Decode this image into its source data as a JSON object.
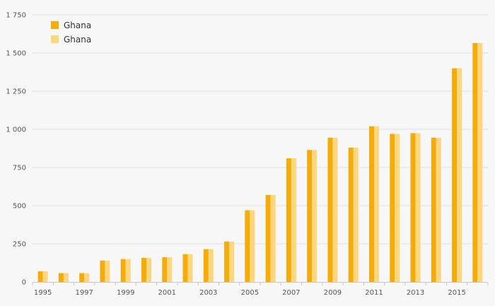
{
  "chart_data": {
    "type": "bar",
    "title": "",
    "xlabel": "",
    "ylabel": "",
    "categories": [
      "1995",
      "1996",
      "1997",
      "1998",
      "1999",
      "2000",
      "2001",
      "2002",
      "2003",
      "2004",
      "2005",
      "2006",
      "2007",
      "2008",
      "2009",
      "2010",
      "2011",
      "2012",
      "2013",
      "2014",
      "2015",
      "2016"
    ],
    "x_tick_labels": [
      "1995",
      "1997",
      "1999",
      "2001",
      "2003",
      "2005",
      "2007",
      "2009",
      "2011",
      "2013",
      "2015"
    ],
    "y_ticks": [
      0,
      250,
      500,
      750,
      1000,
      1250,
      1500,
      1750
    ],
    "y_tick_labels": [
      "0",
      "250",
      "500",
      "750",
      "1 000",
      "1 250",
      "1 500",
      "1 750"
    ],
    "ylim": [
      0,
      1750
    ],
    "grid": true,
    "legend_position": "top-left",
    "series": [
      {
        "name": "Ghana",
        "color": "#f5ac09",
        "values": [
          70,
          58,
          58,
          140,
          150,
          158,
          162,
          182,
          215,
          265,
          470,
          570,
          810,
          865,
          945,
          880,
          1020,
          970,
          975,
          945,
          1400,
          1565
        ]
      },
      {
        "name": "Ghana",
        "color": "#fdd67e",
        "values": [
          70,
          58,
          58,
          140,
          150,
          158,
          162,
          182,
          215,
          265,
          470,
          570,
          810,
          865,
          945,
          880,
          1020,
          970,
          975,
          945,
          1400,
          1565
        ]
      }
    ]
  }
}
